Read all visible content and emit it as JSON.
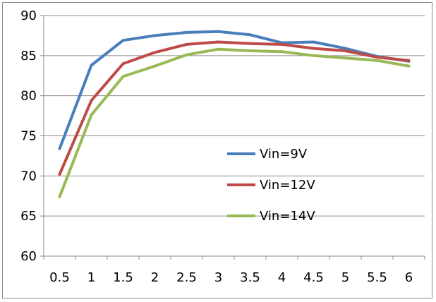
{
  "chart_data": {
    "type": "line",
    "title": "",
    "xlabel": "",
    "ylabel": "",
    "x": [
      0.5,
      1,
      1.5,
      2,
      2.5,
      3,
      3.5,
      4,
      4.5,
      5,
      5.5,
      6
    ],
    "x_tick_labels": [
      "0.5",
      "1",
      "1.5",
      "2",
      "2.5",
      "3",
      "3.5",
      "4",
      "4.5",
      "5",
      "5.5",
      "6"
    ],
    "ylim": [
      60,
      90
    ],
    "y_ticks": [
      60,
      65,
      70,
      75,
      80,
      85,
      90
    ],
    "grid": "horizontal",
    "legend_position": "inside-right",
    "series": [
      {
        "name": "Vin=9V",
        "color": "#4a7ebb",
        "values": [
          73.4,
          83.8,
          86.9,
          87.5,
          87.9,
          88.0,
          87.6,
          86.6,
          86.7,
          85.9,
          84.9,
          84.3
        ]
      },
      {
        "name": "Vin=12V",
        "color": "#be4b48",
        "values": [
          70.2,
          79.4,
          84.0,
          85.4,
          86.4,
          86.7,
          86.5,
          86.4,
          85.9,
          85.6,
          84.8,
          84.4
        ]
      },
      {
        "name": "Vin=14V",
        "color": "#98b954",
        "values": [
          67.4,
          77.6,
          82.4,
          83.7,
          85.1,
          85.8,
          85.6,
          85.5,
          85.0,
          84.7,
          84.4,
          83.7
        ]
      }
    ]
  }
}
